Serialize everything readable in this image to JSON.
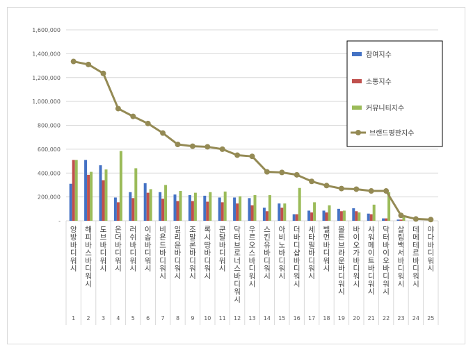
{
  "chart_data": {
    "type": "bar",
    "title": "",
    "xlabel": "",
    "ylabel": "",
    "ylim": [
      0,
      1600000
    ],
    "yticks": [
      "-",
      "200,000",
      "400,000",
      "600,000",
      "800,000",
      "1,000,000",
      "1,200,000",
      "1,400,000",
      "1,600,000"
    ],
    "grid": true,
    "legend_position": "top-right",
    "indices": [
      "1",
      "2",
      "3",
      "4",
      "5",
      "6",
      "7",
      "8",
      "9",
      "10",
      "11",
      "12",
      "13",
      "14",
      "15",
      "16",
      "17",
      "18",
      "19",
      "20",
      "21",
      "22",
      "23",
      "24",
      "25"
    ],
    "categories": [
      "앙방바디워시",
      "해피바스바디워시",
      "도브바디워시",
      "온더바디워시",
      "러쉬바디워시",
      "이솝바디워시",
      "비욘드바디워시",
      "일리윤바디워시",
      "조말론바디워시",
      "록시땅바디워시",
      "쿤달바디워시",
      "닥터브로너스바디워시",
      "우르오스바디워시",
      "스킨유바디워시",
      "아비노바디워시",
      "더바디샵바디워시",
      "세타필바디워시",
      "벨먼바디워시",
      "몰튼브라운바디워시",
      "바이오가바디워시",
      "샤워메이트바디워시",
      "닥터바이오바디워시",
      "살림백서바디워시",
      "데메테르바디워시",
      "야다바디워시"
    ],
    "series": [
      {
        "name": "참여지수",
        "kind": "bar",
        "color": "#4472c4",
        "values": [
          310000,
          510000,
          465000,
          195000,
          240000,
          315000,
          240000,
          220000,
          215000,
          210000,
          195000,
          195000,
          190000,
          110000,
          145000,
          55000,
          85000,
          85000,
          100000,
          105000,
          60000,
          20000,
          10000,
          0,
          0
        ]
      },
      {
        "name": "소통지수",
        "kind": "bar",
        "color": "#c0504d",
        "values": [
          510000,
          385000,
          340000,
          155000,
          190000,
          235000,
          185000,
          165000,
          165000,
          160000,
          155000,
          145000,
          130000,
          80000,
          110000,
          55000,
          70000,
          70000,
          80000,
          80000,
          55000,
          20000,
          10000,
          0,
          0
        ]
      },
      {
        "name": "커뮤니티지수",
        "kind": "bar",
        "color": "#9bbb59",
        "values": [
          510000,
          410000,
          430000,
          585000,
          440000,
          265000,
          300000,
          250000,
          235000,
          240000,
          245000,
          205000,
          215000,
          215000,
          145000,
          275000,
          155000,
          130000,
          85000,
          70000,
          135000,
          240000,
          30000,
          0,
          0
        ]
      },
      {
        "name": "브랜드평판지수",
        "kind": "line",
        "color": "#948a54",
        "values": [
          1335000,
          1310000,
          1235000,
          940000,
          875000,
          815000,
          735000,
          640000,
          625000,
          620000,
          600000,
          550000,
          540000,
          410000,
          405000,
          385000,
          330000,
          295000,
          270000,
          265000,
          250000,
          250000,
          45000,
          15000,
          10000
        ]
      }
    ]
  }
}
